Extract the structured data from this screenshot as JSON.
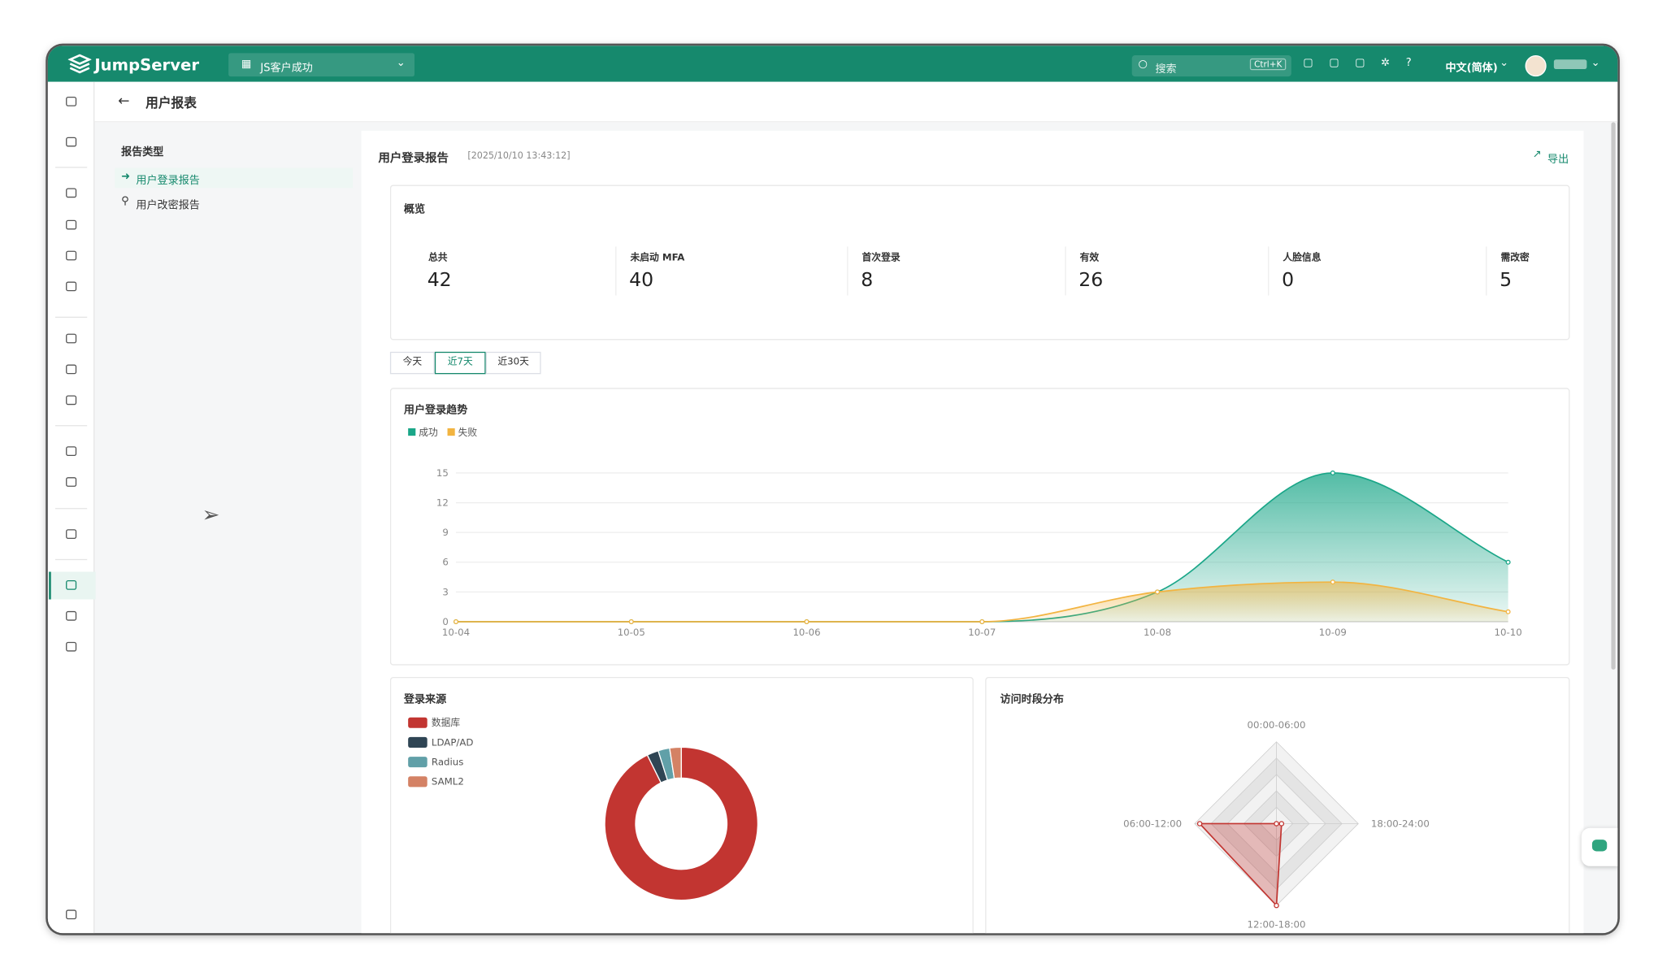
{
  "header": {
    "brand": "JumpServer",
    "org": "JS客户成功",
    "search": "搜索",
    "shortcut": "Ctrl+K",
    "language": "中文(简体)"
  },
  "page": {
    "title": "用户报表"
  },
  "sidebar": {
    "title": "报告类型",
    "items": [
      "用户登录报告",
      "用户改密报告"
    ],
    "active": 0
  },
  "report": {
    "title": "用户登录报告",
    "time": "[2025/10/10 13:43:12]",
    "export": "导出"
  },
  "overview": {
    "title": "概览",
    "stats": [
      {
        "label": "总共",
        "value": 42
      },
      {
        "label": "未启动 MFA",
        "value": 40
      },
      {
        "label": "首次登录",
        "value": 8
      },
      {
        "label": "有效",
        "value": 26
      },
      {
        "label": "人脸信息",
        "value": 0
      },
      {
        "label": "需改密",
        "value": 5
      }
    ]
  },
  "tabs": {
    "items": [
      "今天",
      "近7天",
      "近30天"
    ],
    "active": 1
  },
  "chart_data": [
    {
      "type": "line",
      "title": "用户登录趋势",
      "categories": [
        "10-04",
        "10-05",
        "10-06",
        "10-07",
        "10-08",
        "10-09",
        "10-10"
      ],
      "series": [
        {
          "name": "成功",
          "color": "#1aa688",
          "values": [
            0,
            0,
            0,
            0,
            3,
            15,
            6
          ]
        },
        {
          "name": "失败",
          "color": "#f2b441",
          "values": [
            0,
            0,
            0,
            0,
            3,
            4,
            1
          ]
        }
      ],
      "ylim": [
        0,
        15
      ],
      "yticks": [
        0,
        3,
        6,
        9,
        12,
        15
      ],
      "grid": true,
      "smooth": true,
      "area": true
    },
    {
      "type": "pie",
      "title": "登录来源",
      "categories": [
        "数据库",
        "LDAP/AD",
        "Radius",
        "SAML2"
      ],
      "values": [
        38,
        1,
        1,
        1
      ],
      "colors": [
        "#c23531",
        "#2f4554",
        "#61a0a8",
        "#d48265"
      ],
      "donut": true
    },
    {
      "type": "radar",
      "title": "访问时段分布",
      "categories": [
        "00:00-06:00",
        "06:00-12:00",
        "12:00-18:00",
        "18:00-24:00"
      ],
      "values": [
        0,
        15,
        16,
        1
      ],
      "rlim": [
        0,
        16
      ],
      "color": "#c23531"
    }
  ]
}
